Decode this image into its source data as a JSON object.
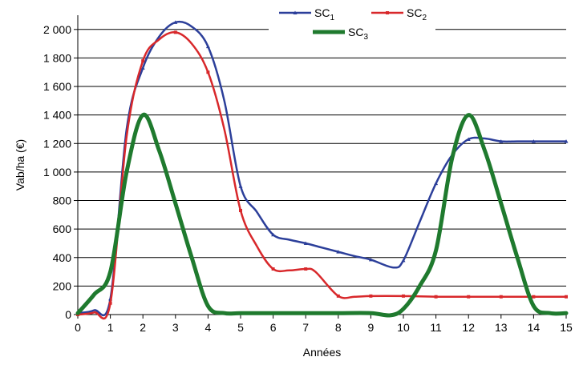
{
  "chart_data": {
    "type": "line",
    "xlabel": "Années",
    "ylabel": "Vab/ha (€)",
    "xlim": [
      0,
      15
    ],
    "ylim": [
      0,
      2100
    ],
    "x_ticks": [
      "0",
      "1",
      "2",
      "3",
      "4",
      "5",
      "6",
      "7",
      "8",
      "9",
      "10",
      "11",
      "12",
      "13",
      "14",
      "15"
    ],
    "y_ticks": [
      {
        "value": 0,
        "label": "0"
      },
      {
        "value": 200,
        "label": "200"
      },
      {
        "value": 400,
        "label": "400"
      },
      {
        "value": 600,
        "label": "600"
      },
      {
        "value": 800,
        "label": "800"
      },
      {
        "value": 1000,
        "label": "1 000"
      },
      {
        "value": 1200,
        "label": "1 200"
      },
      {
        "value": 1400,
        "label": "1 400"
      },
      {
        "value": 1600,
        "label": "1 600"
      },
      {
        "value": 1800,
        "label": "1 800"
      },
      {
        "value": 2000,
        "label": "2 000"
      }
    ],
    "grid": "horizontal",
    "legend_position": "top-right",
    "series": [
      {
        "name": "SC",
        "subscript": "1",
        "color": "#2c3f9a",
        "marker": "triangle",
        "points": [
          [
            0,
            10
          ],
          [
            0.5,
            30
          ],
          [
            1,
            110
          ],
          [
            1.5,
            1300
          ],
          [
            2,
            1730
          ],
          [
            2.5,
            1950
          ],
          [
            3,
            2050
          ],
          [
            3.5,
            2020
          ],
          [
            4,
            1880
          ],
          [
            4.5,
            1500
          ],
          [
            5,
            900
          ],
          [
            5.5,
            720
          ],
          [
            6,
            560
          ],
          [
            6.5,
            525
          ],
          [
            7,
            500
          ],
          [
            7.5,
            470
          ],
          [
            8,
            440
          ],
          [
            8.5,
            410
          ],
          [
            9,
            385
          ],
          [
            9.7,
            330
          ],
          [
            10,
            380
          ],
          [
            10.5,
            650
          ],
          [
            11,
            920
          ],
          [
            11.5,
            1120
          ],
          [
            12,
            1230
          ],
          [
            12.5,
            1235
          ],
          [
            13,
            1215
          ],
          [
            13.5,
            1215
          ],
          [
            14,
            1215
          ],
          [
            14.5,
            1215
          ],
          [
            15,
            1215
          ]
        ]
      },
      {
        "name": "SC",
        "subscript": "2",
        "color": "#d8282b",
        "marker": "square",
        "points": [
          [
            0,
            0
          ],
          [
            0.5,
            15
          ],
          [
            1,
            80
          ],
          [
            1.5,
            1250
          ],
          [
            2,
            1780
          ],
          [
            2.5,
            1930
          ],
          [
            3,
            1980
          ],
          [
            3.5,
            1900
          ],
          [
            4,
            1700
          ],
          [
            4.5,
            1300
          ],
          [
            5,
            730
          ],
          [
            5.5,
            480
          ],
          [
            6,
            320
          ],
          [
            6.5,
            310
          ],
          [
            7,
            320
          ],
          [
            7.3,
            300
          ],
          [
            8,
            130
          ],
          [
            8.5,
            125
          ],
          [
            9,
            130
          ],
          [
            10,
            130
          ],
          [
            11,
            125
          ],
          [
            12,
            125
          ],
          [
            13,
            125
          ],
          [
            14,
            125
          ],
          [
            15,
            125
          ]
        ]
      },
      {
        "name": "SC",
        "subscript": "3",
        "color": "#1f7a2e",
        "marker": "circle",
        "points": [
          [
            0,
            10
          ],
          [
            0.5,
            140
          ],
          [
            1,
            300
          ],
          [
            1.5,
            1000
          ],
          [
            2,
            1400
          ],
          [
            2.5,
            1150
          ],
          [
            3,
            780
          ],
          [
            3.5,
            400
          ],
          [
            4,
            60
          ],
          [
            4.5,
            10
          ],
          [
            5,
            10
          ],
          [
            6,
            10
          ],
          [
            7,
            10
          ],
          [
            8,
            10
          ],
          [
            9,
            10
          ],
          [
            9.6,
            -5
          ],
          [
            10,
            40
          ],
          [
            10.5,
            200
          ],
          [
            11,
            450
          ],
          [
            11.5,
            1100
          ],
          [
            12,
            1400
          ],
          [
            12.5,
            1150
          ],
          [
            13,
            780
          ],
          [
            13.5,
            400
          ],
          [
            14,
            60
          ],
          [
            14.5,
            10
          ],
          [
            15,
            10
          ]
        ]
      }
    ]
  }
}
